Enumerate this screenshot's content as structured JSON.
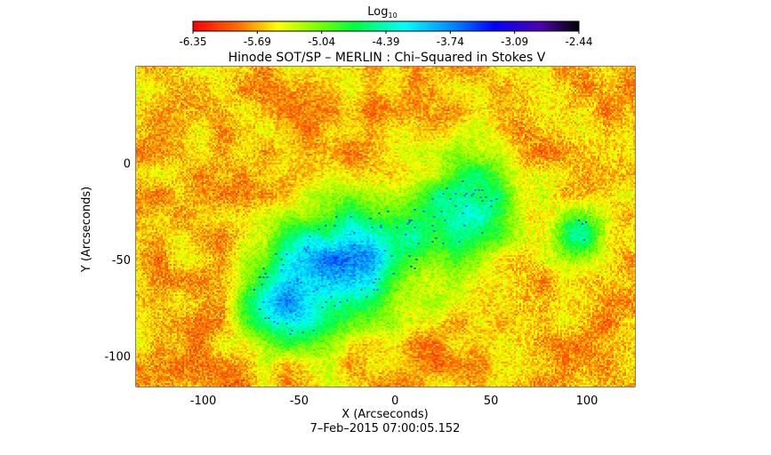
{
  "chart_data": {
    "type": "heatmap",
    "title": "Hinode SOT/SP – MERLIN : Chi–Squared in Stokes V",
    "xlabel": "X (Arcseconds)",
    "ylabel": "Y (Arcseconds)",
    "xlim": [
      -135,
      125
    ],
    "ylim": [
      -116,
      50
    ],
    "x_ticks": [
      -100,
      -50,
      0,
      50,
      100
    ],
    "y_ticks": [
      0,
      -50,
      -100
    ],
    "colorbar": {
      "label": "Log",
      "label_subscript": "10",
      "range": [
        -6.35,
        -2.44
      ],
      "ticks": [
        "-6.35",
        "-5.69",
        "-5.04",
        "-4.39",
        "-3.74",
        "-3.09",
        "-2.44"
      ],
      "colormap": [
        "#ff0000",
        "#ff8000",
        "#ffff00",
        "#80ff00",
        "#00ff00",
        "#00ff80",
        "#00ffff",
        "#0080ff",
        "#0000ff",
        "#6000c0",
        "#000000"
      ]
    },
    "timestamp": "7–Feb–2015 07:00:05.152",
    "values_note": ""
  }
}
